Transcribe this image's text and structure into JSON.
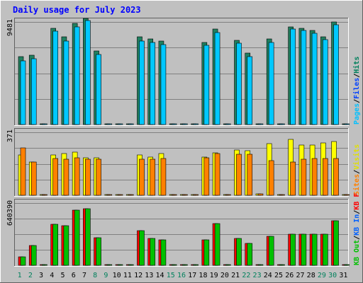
{
  "chart_data": {
    "type": "bar",
    "title": "Daily usage for July 2023",
    "days": [
      "1",
      "2",
      "3",
      "4",
      "5",
      "6",
      "7",
      "8",
      "9",
      "10",
      "11",
      "12",
      "13",
      "14",
      "15",
      "16",
      "17",
      "18",
      "19",
      "20",
      "21",
      "22",
      "23",
      "24",
      "25",
      "26",
      "27",
      "28",
      "29",
      "30",
      "31"
    ],
    "weekend_days": [
      1,
      2,
      8,
      9,
      15,
      16,
      22,
      23,
      29,
      30
    ],
    "panels": [
      {
        "key": "hits_files_pages",
        "ymax": 9481,
        "ymax_label": "9481",
        "legend": [
          {
            "text": "Hits",
            "color": "#00805c"
          },
          {
            "text": "Files",
            "color": "#0040ff"
          },
          {
            "text": "Pages",
            "color": "#00c0ff"
          }
        ],
        "series": [
          {
            "name": "Hits",
            "color": "#00805c",
            "values": [
              6300,
              6400,
              0,
              8900,
              8100,
              9350,
              9800,
              6800,
              0,
              0,
              0,
              8100,
              7900,
              7700,
              0,
              0,
              0,
              7600,
              8850,
              0,
              7800,
              6600,
              0,
              7900,
              0,
              9050,
              8900,
              8700,
              8100,
              9500,
              0
            ]
          },
          {
            "name": "Files",
            "color": "#00c8ff",
            "values": [
              5900,
              6100,
              0,
              8600,
              7700,
              9000,
              9600,
              6500,
              0,
              0,
              0,
              7700,
              7600,
              7400,
              0,
              0,
              0,
              7300,
              8500,
              0,
              7500,
              6300,
              0,
              7600,
              0,
              8850,
              8700,
              8450,
              7850,
              9200,
              0
            ]
          }
        ]
      },
      {
        "key": "visits_sites",
        "ymax": 371,
        "ymax_label": "371",
        "legend": [
          {
            "text": "Visits",
            "color": "#e0e000"
          },
          {
            "text": "Sites",
            "color": "#ff8000"
          }
        ],
        "series": [
          {
            "name": "Visits",
            "color": "#ffff00",
            "values": [
              238,
              198,
              0,
              236,
              247,
              253,
              222,
              222,
              0,
              0,
              0,
              237,
              225,
              247,
              0,
              0,
              0,
              227,
              250,
              0,
              268,
              262,
              8,
              304,
              0,
              331,
              296,
              296,
              309,
              318,
              0
            ]
          },
          {
            "name": "Sites",
            "color": "#ff8000",
            "values": [
              278,
              196,
              0,
              216,
              214,
              221,
              212,
              212,
              0,
              0,
              0,
              214,
              214,
              217,
              0,
              0,
              0,
              219,
              248,
              0,
              240,
              240,
              8,
              203,
              0,
              198,
              211,
              216,
              217,
              218,
              0
            ]
          }
        ]
      },
      {
        "key": "kbytes",
        "ymax": 640390,
        "ymax_label": "640390",
        "legend": [
          {
            "text": "KB F",
            "color": "#ff0000"
          },
          {
            "text": "KB In",
            "color": "#0060ff"
          },
          {
            "text": "KB Out",
            "color": "#00c000"
          }
        ],
        "series": [
          {
            "name": "KB F",
            "color": "#ff0000",
            "values": [
              90000,
              205000,
              0,
              425000,
              405000,
              565000,
              580000,
              285000,
              0,
              0,
              0,
              360000,
              275000,
              260000,
              0,
              0,
              0,
              260000,
              428000,
              0,
              280000,
              222000,
              0,
              300000,
              0,
              318000,
              318000,
              318000,
              322000,
              458000,
              0
            ]
          },
          {
            "name": "KB Out",
            "color": "#00c000",
            "values": [
              90000,
              205000,
              0,
              425000,
              405000,
              565000,
              580000,
              285000,
              0,
              0,
              0,
              360000,
              275000,
              260000,
              0,
              0,
              0,
              260000,
              428000,
              0,
              280000,
              222000,
              0,
              300000,
              0,
              318000,
              318000,
              318000,
              322000,
              458000,
              0
            ]
          }
        ]
      }
    ]
  }
}
